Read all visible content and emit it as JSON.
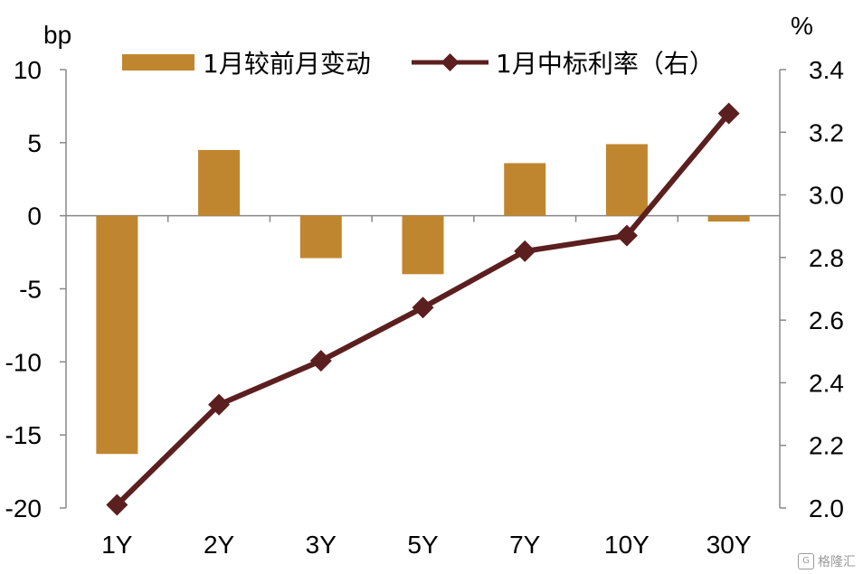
{
  "chart_data": {
    "type": "bar+line",
    "categories": [
      "1Y",
      "2Y",
      "3Y",
      "5Y",
      "7Y",
      "10Y",
      "30Y"
    ],
    "series": [
      {
        "name": "1月较前月变动",
        "type": "bar",
        "axis": "left",
        "values": [
          -16.3,
          4.5,
          -2.9,
          -4.0,
          3.6,
          4.9,
          -0.4
        ]
      },
      {
        "name": "1月中标利率（右）",
        "type": "line",
        "axis": "right",
        "values": [
          2.01,
          2.33,
          2.47,
          2.64,
          2.82,
          2.87,
          3.26
        ]
      }
    ],
    "left_axis": {
      "unit": "bp",
      "ylim": [
        -20,
        10
      ],
      "ticks": [
        "10",
        "5",
        "0",
        "-5",
        "-10",
        "-15",
        "-20"
      ]
    },
    "right_axis": {
      "unit": "%",
      "ylim": [
        2.0,
        3.4
      ],
      "ticks": [
        "3.4",
        "3.2",
        "3.0",
        "2.8",
        "2.6",
        "2.4",
        "2.2",
        "2.0"
      ]
    },
    "legend_position": "top",
    "grid": false,
    "colors": {
      "bar": "#C0862F",
      "line": "#5C1F1F",
      "axis": "#888888"
    }
  },
  "watermark": {
    "text": "格隆汇",
    "icon": "gelonghui-logo-icon"
  }
}
